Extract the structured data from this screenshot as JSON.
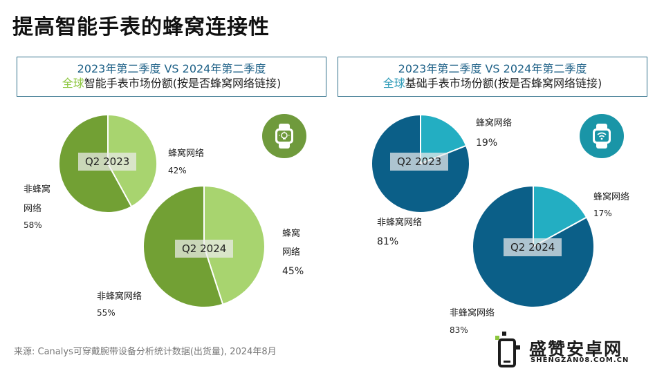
{
  "title": "提高智能手表的蜂窝连接性",
  "colors": {
    "smart_cellular": "#a8d46f",
    "smart_noncellular": "#72a034",
    "basic_cellular": "#23aec2",
    "basic_noncellular": "#0b5f88",
    "header_border": "#2f6f8a",
    "highlight_green": "#8cc63e",
    "highlight_teal": "#2c9ab7"
  },
  "panels": {
    "left": {
      "line1": "2023年第二季度 VS 2024年第二季度",
      "line2_highlight": "全球",
      "line2_rest": "智能手表市场份额(按是否蜂窝网络链接)",
      "icon": "smartwatch-bulb-icon"
    },
    "right": {
      "line1": "2023年第二季度 VS 2024年第二季度",
      "line2_highlight": "全球",
      "line2_rest": "基础手表市场份额(按是否蜂窝网络链接)",
      "icon": "smartwatch-wifi-icon"
    }
  },
  "labels": {
    "smart_2023_cell": "蜂窝网络",
    "smart_2023_cell_pct": "42%",
    "smart_2023_non_a": "非蜂窝",
    "smart_2023_non_b": "网络",
    "smart_2023_non_pct": "58%",
    "smart_2024_cell_a": "蜂窝",
    "smart_2024_cell_b": "网络",
    "smart_2024_cell_pct": "45%",
    "smart_2024_non": "非蜂窝网络",
    "smart_2024_non_pct": "55%",
    "basic_2023_cell": "蜂窝网络",
    "basic_2023_cell_pct": "19%",
    "basic_2023_non": "非蜂窝网络",
    "basic_2023_non_pct": "81%",
    "basic_2024_cell": "蜂窝网络",
    "basic_2024_cell_pct": "17%",
    "basic_2024_non": "非蜂窝网络",
    "basic_2024_non_pct": "83%"
  },
  "chart_data": [
    {
      "type": "pie",
      "id": "smart-2023",
      "label": "Q2 2023",
      "categories": [
        "蜂窝网络",
        "非蜂窝网络"
      ],
      "values": [
        42,
        58
      ],
      "colors": [
        "#a8d46f",
        "#72a034"
      ]
    },
    {
      "type": "pie",
      "id": "smart-2024",
      "label": "Q2 2024",
      "categories": [
        "蜂窝网络",
        "非蜂窝网络"
      ],
      "values": [
        45,
        55
      ],
      "colors": [
        "#a8d46f",
        "#72a034"
      ]
    },
    {
      "type": "pie",
      "id": "basic-2023",
      "label": "Q2 2023",
      "categories": [
        "蜂窝网络",
        "非蜂窝网络"
      ],
      "values": [
        19,
        81
      ],
      "colors": [
        "#23aec2",
        "#0b5f88"
      ]
    },
    {
      "type": "pie",
      "id": "basic-2024",
      "label": "Q2 2024",
      "categories": [
        "蜂窝网络",
        "非蜂窝网络"
      ],
      "values": [
        17,
        83
      ],
      "colors": [
        "#23aec2",
        "#0b5f88"
      ]
    }
  ],
  "source": "来源: Canalys可穿戴腕带设备分析统计数据(出货量), 2024年8月",
  "watermark": {
    "name": "盛赞安卓网",
    "url": "SHENGZAN08.COM.CN"
  }
}
